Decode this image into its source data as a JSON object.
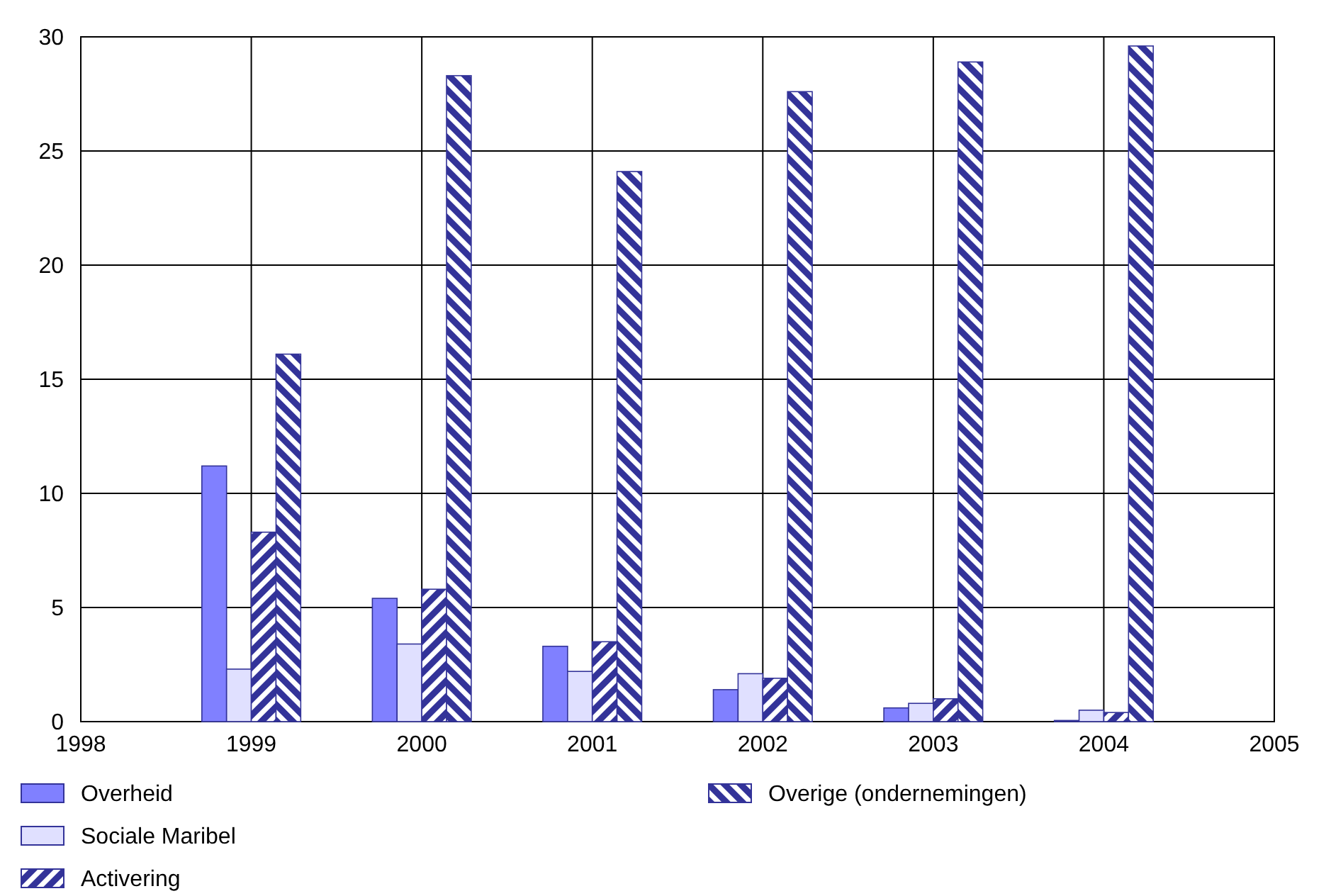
{
  "chart_data": {
    "type": "bar",
    "x": [
      1999,
      2000,
      2001,
      2002,
      2003,
      2004
    ],
    "xlim": [
      1998,
      2005
    ],
    "xticks": [
      1998,
      1999,
      2000,
      2001,
      2002,
      2003,
      2004,
      2005
    ],
    "ylim": [
      0,
      30
    ],
    "yticks": [
      0,
      5,
      10,
      15,
      20,
      25,
      30
    ],
    "grid": true,
    "legend": "bottom",
    "series": [
      {
        "name": "Overheid",
        "color": "#8080ff",
        "values": [
          11.2,
          5.4,
          3.3,
          1.4,
          0.6,
          0.05
        ]
      },
      {
        "name": "Sociale Maribel",
        "color": "#e0e0ff",
        "values": [
          2.3,
          3.4,
          2.2,
          2.1,
          0.8,
          0.5
        ]
      },
      {
        "name": "Activering",
        "color": "#333399",
        "values": [
          8.3,
          5.8,
          3.5,
          1.9,
          1.0,
          0.4
        ]
      },
      {
        "name": "Overige (ondernemingen)",
        "color": "#333399",
        "values": [
          16.1,
          28.3,
          24.1,
          27.6,
          28.9,
          29.6
        ]
      }
    ]
  }
}
